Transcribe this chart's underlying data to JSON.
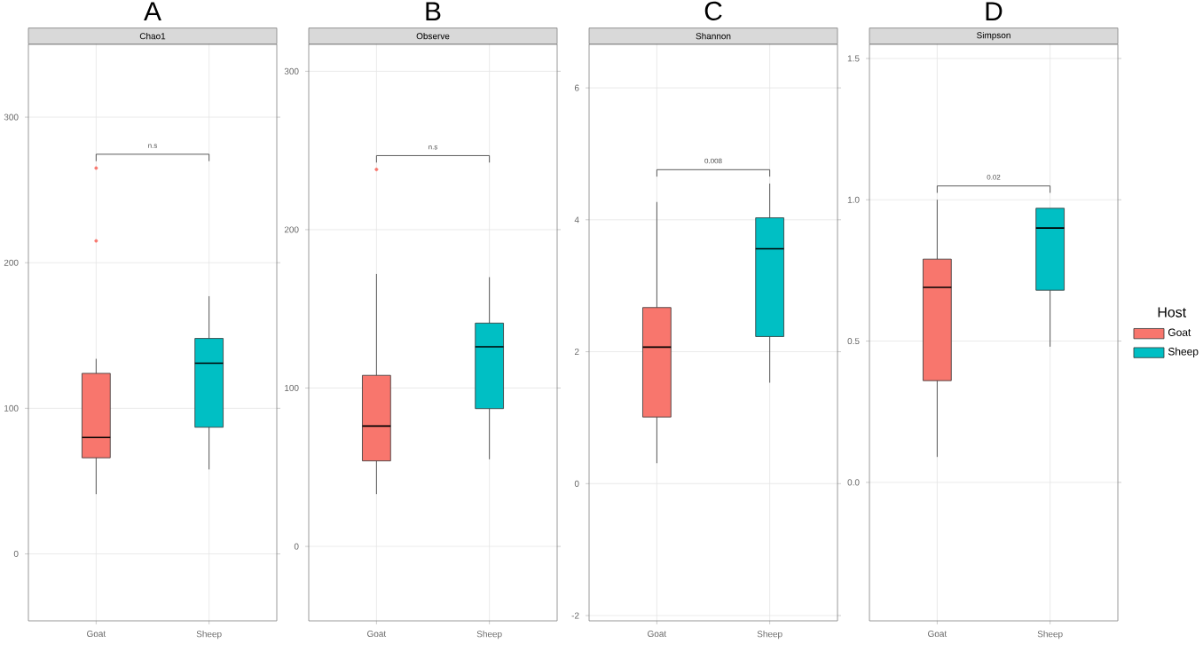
{
  "chart_data": [
    {
      "type": "box",
      "title": "A",
      "subtitle": "Chao1",
      "categories": [
        "Goat",
        "Sheep"
      ],
      "ylim": [
        -46,
        350
      ],
      "yticks": [
        0,
        100,
        200,
        300
      ],
      "grid": true,
      "annotations": [
        "n.s"
      ],
      "series": [
        {
          "color": "#f8766d",
          "boxes": [
            {
              "low": 41,
              "q1": 66,
              "median": 80,
              "q3": 124,
              "high": 134,
              "outliers": [
                265,
                215
              ]
            },
            null
          ]
        },
        {
          "color": "#00bfc4",
          "boxes": [
            null,
            {
              "low": 58,
              "q1": 87,
              "median": 131,
              "q3": 148,
              "high": 177
            }
          ]
        }
      ]
    },
    {
      "type": "box",
      "title": "B",
      "subtitle": "Observe",
      "categories": [
        "Goat",
        "Sheep"
      ],
      "ylim": [
        -47,
        317
      ],
      "yticks": [
        0,
        100,
        200,
        300
      ],
      "grid": true,
      "annotations": [
        "n.s"
      ],
      "series": [
        {
          "color": "#f8766d",
          "boxes": [
            {
              "low": 33,
              "q1": 54,
              "median": 76,
              "q3": 108,
              "high": 172,
              "outliers": [
                238
              ]
            },
            null
          ]
        },
        {
          "color": "#00bfc4",
          "boxes": [
            null,
            {
              "low": 55,
              "q1": 87,
              "median": 126,
              "q3": 141,
              "high": 170
            }
          ]
        }
      ]
    },
    {
      "type": "box",
      "title": "C",
      "subtitle": "Shannon",
      "categories": [
        "Goat",
        "Sheep"
      ],
      "ylim": [
        -2.08,
        6.66
      ],
      "yticks": [
        -2,
        0,
        2,
        4,
        6
      ],
      "grid": true,
      "annotations": [
        "0.008"
      ],
      "series": [
        {
          "color": "#f8766d",
          "boxes": [
            {
              "low": 0.31,
              "q1": 1.01,
              "median": 2.07,
              "q3": 2.67,
              "high": 4.27
            },
            null
          ]
        },
        {
          "color": "#00bfc4",
          "boxes": [
            null,
            {
              "low": 1.53,
              "q1": 2.23,
              "median": 3.56,
              "q3": 4.03,
              "high": 4.55
            }
          ]
        }
      ]
    },
    {
      "type": "box",
      "title": "D",
      "subtitle": "Simpson",
      "categories": [
        "Goat",
        "Sheep"
      ],
      "ylim": [
        -0.49,
        1.55
      ],
      "yticks": [
        {
          "value": 0.0,
          "label": "0.0"
        },
        {
          "value": 0.5,
          "label": "0.5"
        },
        {
          "value": 1.0,
          "label": "1.0"
        },
        {
          "value": 1.5,
          "label": "1.5"
        }
      ],
      "grid": true,
      "legend": "right",
      "legend_title": "Host",
      "annotations": [
        "0.02"
      ],
      "series": [
        {
          "name": "Goat",
          "color": "#f8766d",
          "boxes": [
            {
              "low": 0.09,
              "q1": 0.36,
              "median": 0.69,
              "q3": 0.79,
              "high": 1.0
            },
            null
          ]
        },
        {
          "name": "Sheep",
          "color": "#00bfc4",
          "boxes": [
            null,
            {
              "low": 0.48,
              "q1": 0.68,
              "median": 0.9,
              "q3": 0.97,
              "high": 0.97
            }
          ]
        }
      ]
    }
  ]
}
